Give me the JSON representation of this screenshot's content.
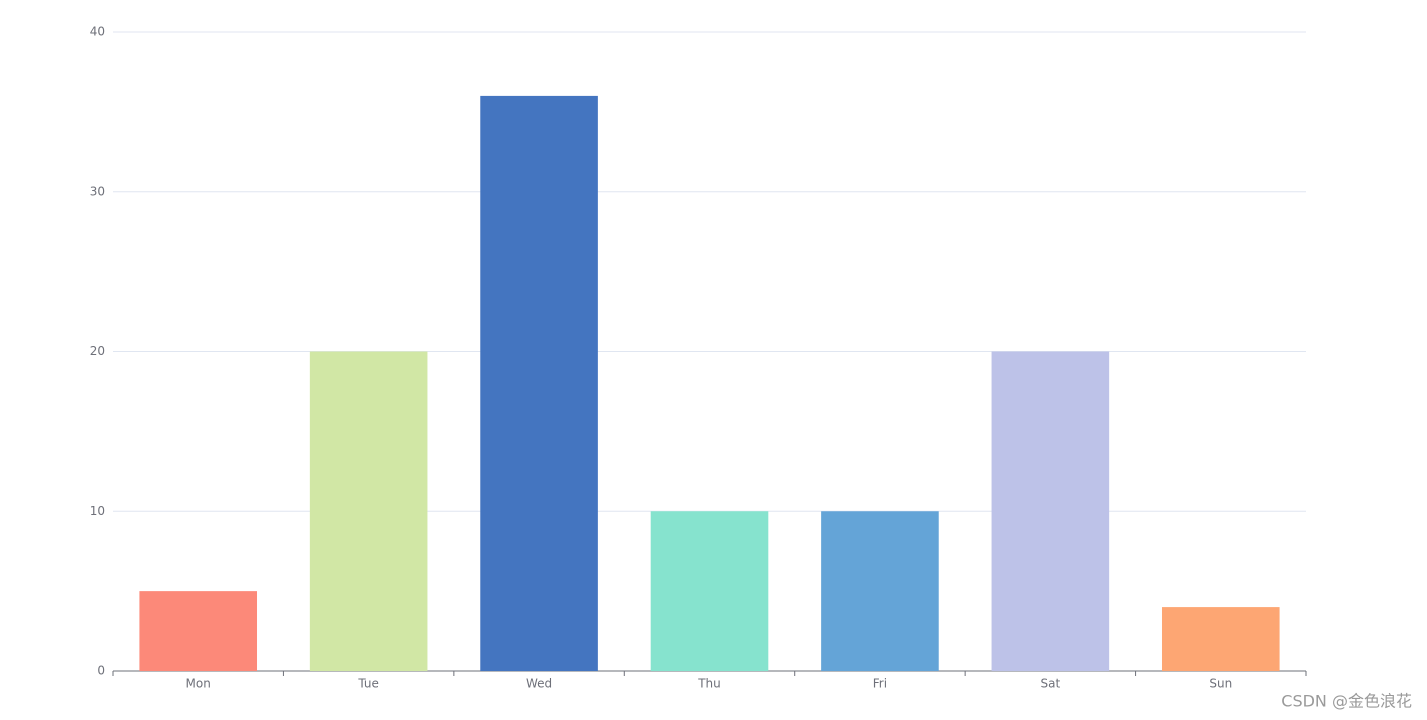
{
  "chart_data": {
    "type": "bar",
    "categories": [
      "Mon",
      "Tue",
      "Wed",
      "Thu",
      "Fri",
      "Sat",
      "Sun"
    ],
    "values": [
      5,
      20,
      36,
      10,
      10,
      20,
      4
    ],
    "colors": [
      "#fc8979",
      "#d1e7a5",
      "#4475c0",
      "#86e3ce",
      "#64a4d7",
      "#bdc2e8",
      "#fda673"
    ],
    "ylim": [
      0,
      40
    ],
    "yticks": [
      0,
      10,
      20,
      30,
      40
    ],
    "grid": true,
    "watermark": "CSDN @金色浪花"
  }
}
